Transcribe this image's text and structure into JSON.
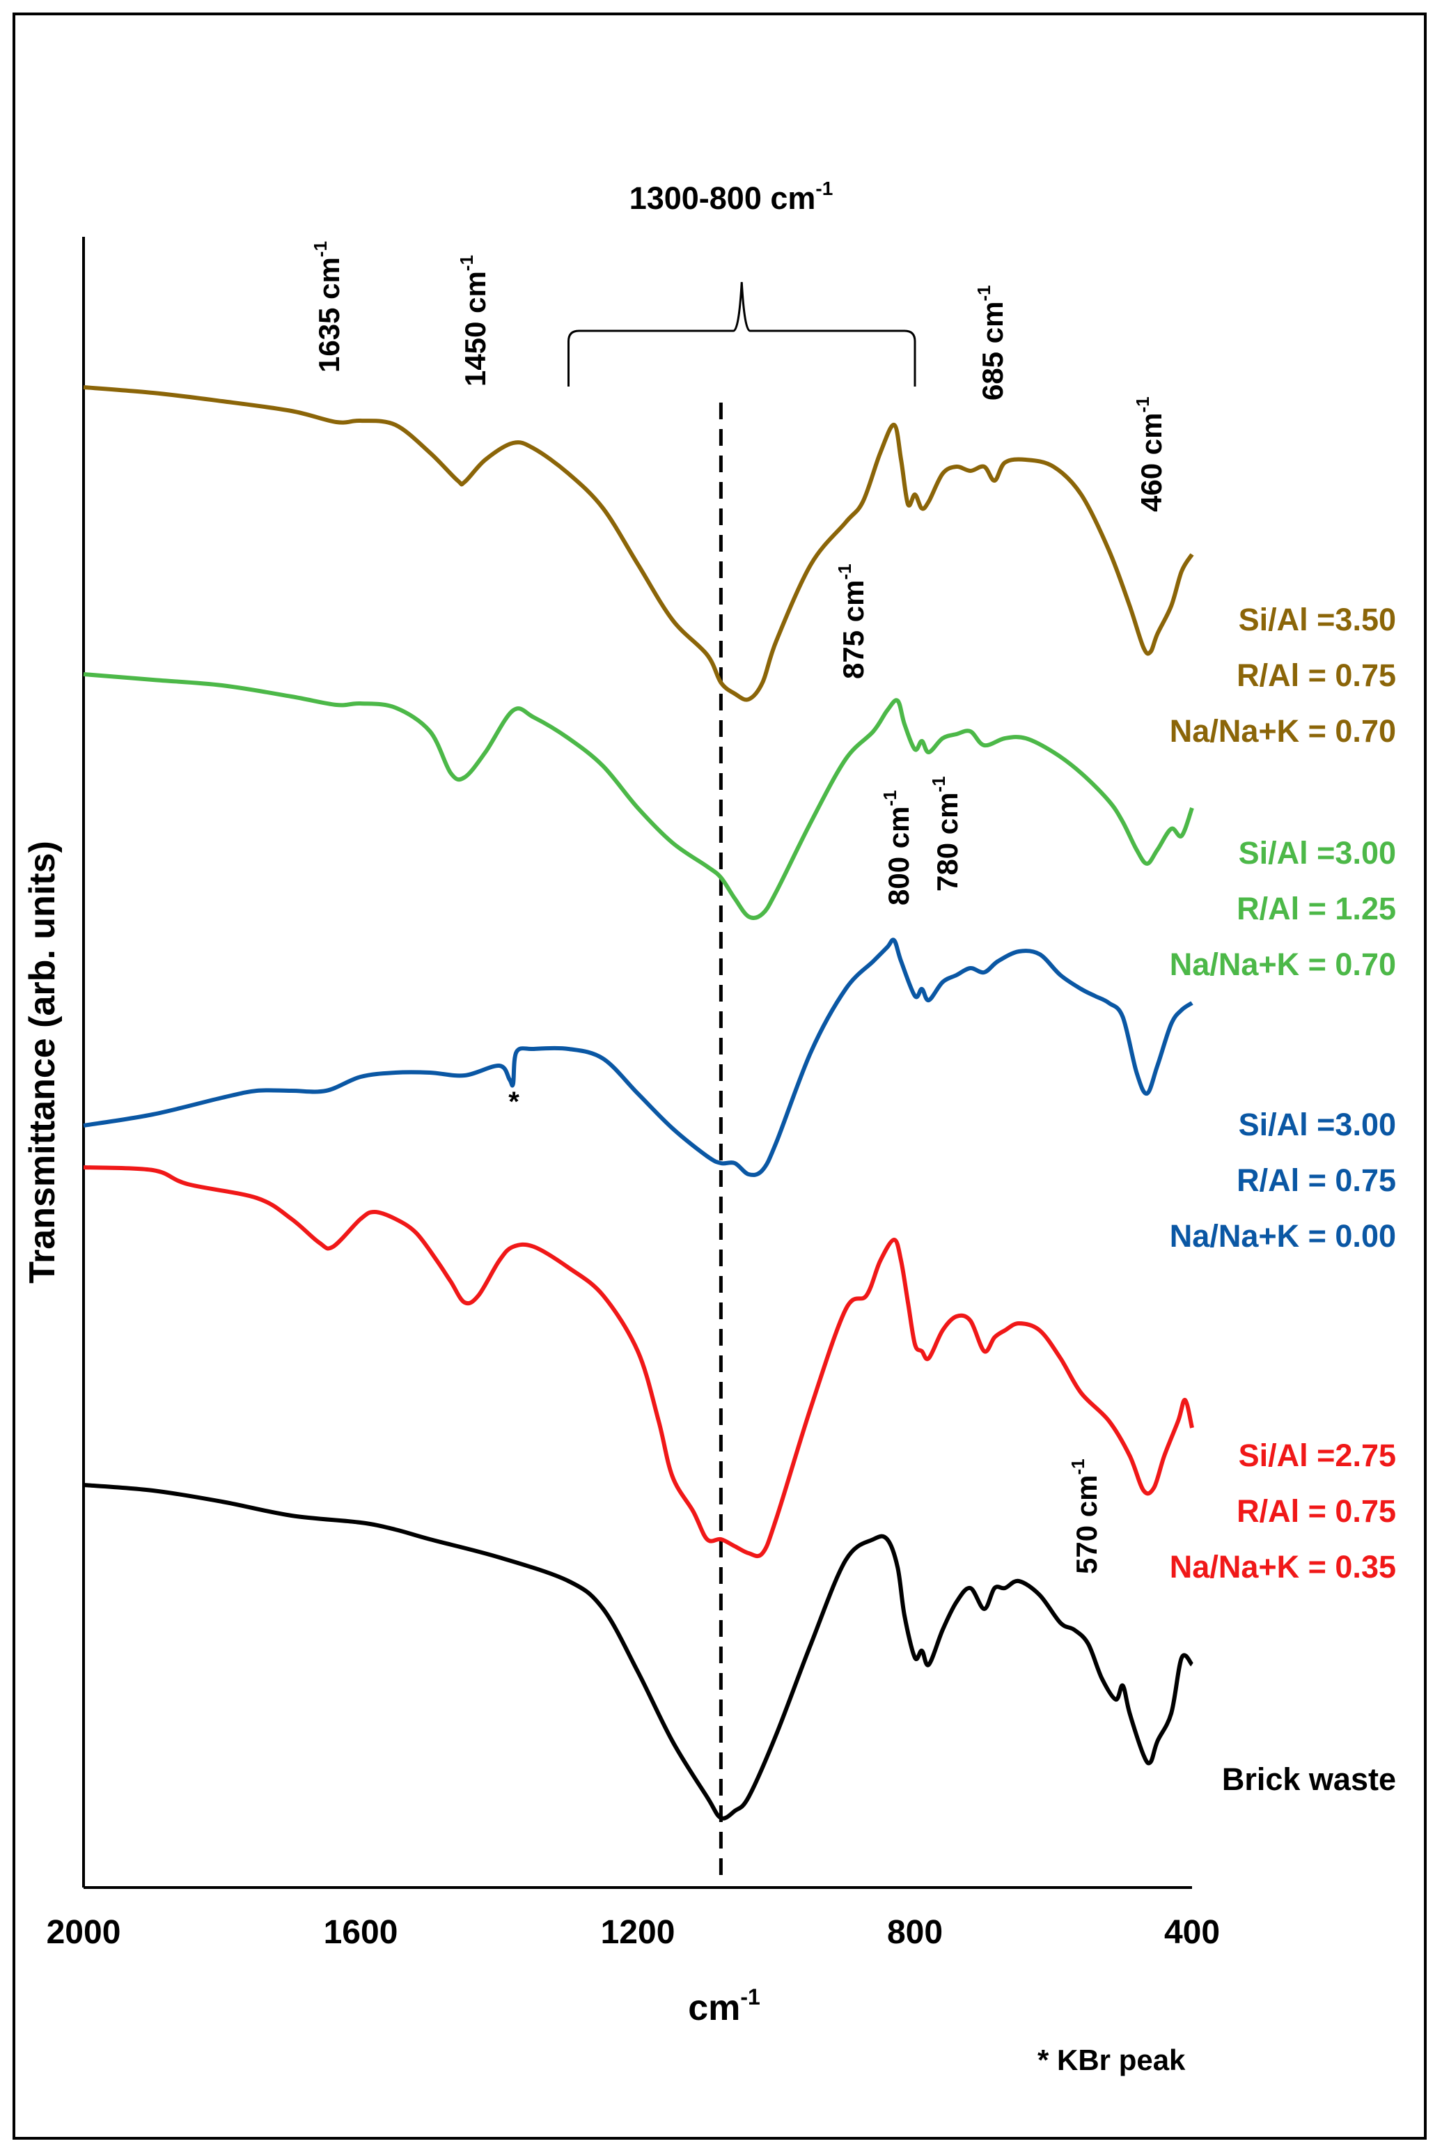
{
  "chart_data": {
    "type": "line",
    "title": "",
    "xlabel": "cm-1",
    "ylabel": "Transmittance (arb. units)",
    "xlim": [
      2000,
      400
    ],
    "x_reversed": true,
    "x_ticks": [
      2000,
      1600,
      1200,
      800,
      400
    ],
    "y_ticks": [],
    "grid": false,
    "footnote": "* KBr peak",
    "reference_line_x": 1080,
    "annotations": [
      {
        "label": "1635 cm-1",
        "base": "1635 cm",
        "sup": "-1",
        "x": 1635
      },
      {
        "label": "1450 cm-1",
        "base": "1450 cm",
        "sup": "-1",
        "x": 1450
      },
      {
        "label": "1300-800 cm-1",
        "base": "1300-800 cm",
        "sup": "-1",
        "x_range": [
          1300,
          800
        ]
      },
      {
        "label": "685 cm-1",
        "base": "685 cm",
        "sup": "-1",
        "x": 685
      },
      {
        "label": "460 cm-1",
        "base": "460 cm",
        "sup": "-1",
        "x": 460
      },
      {
        "label": "875 cm-1",
        "base": "875 cm",
        "sup": "-1",
        "x": 875
      },
      {
        "label": "800 cm-1",
        "base": "800 cm",
        "sup": "-1",
        "x": 800
      },
      {
        "label": "780 cm-1",
        "base": "780 cm",
        "sup": "-1",
        "x": 780
      },
      {
        "label": "570 cm-1",
        "base": "570 cm",
        "sup": "-1",
        "x": 570
      },
      {
        "label": "*",
        "base": "*",
        "sup": "",
        "x": 1380
      }
    ],
    "series": [
      {
        "name": "Si/Al =3.50 R/Al = 0.75 Na/Na+K = 0.70",
        "legend": [
          "Si/Al =3.50",
          "R/Al = 0.75",
          "Na/Na+K = 0.70"
        ],
        "color": "#8b6508",
        "points": [
          [
            2000,
            2.68
          ],
          [
            1900,
            2.72
          ],
          [
            1800,
            2.78
          ],
          [
            1700,
            2.85
          ],
          [
            1635,
            2.93
          ],
          [
            1600,
            2.92
          ],
          [
            1550,
            2.95
          ],
          [
            1500,
            3.15
          ],
          [
            1460,
            3.35
          ],
          [
            1450,
            3.36
          ],
          [
            1420,
            3.2
          ],
          [
            1380,
            3.08
          ],
          [
            1350,
            3.12
          ],
          [
            1300,
            3.3
          ],
          [
            1250,
            3.55
          ],
          [
            1200,
            3.95
          ],
          [
            1150,
            4.35
          ],
          [
            1100,
            4.6
          ],
          [
            1080,
            4.8
          ],
          [
            1060,
            4.88
          ],
          [
            1040,
            4.92
          ],
          [
            1020,
            4.8
          ],
          [
            1000,
            4.5
          ],
          [
            950,
            3.95
          ],
          [
            900,
            3.65
          ],
          [
            875,
            3.5
          ],
          [
            850,
            3.15
          ],
          [
            830,
            2.95
          ],
          [
            820,
            3.2
          ],
          [
            810,
            3.52
          ],
          [
            800,
            3.45
          ],
          [
            790,
            3.55
          ],
          [
            780,
            3.5
          ],
          [
            760,
            3.3
          ],
          [
            740,
            3.25
          ],
          [
            720,
            3.28
          ],
          [
            700,
            3.25
          ],
          [
            685,
            3.35
          ],
          [
            670,
            3.22
          ],
          [
            640,
            3.2
          ],
          [
            600,
            3.25
          ],
          [
            560,
            3.45
          ],
          [
            520,
            3.85
          ],
          [
            490,
            4.25
          ],
          [
            470,
            4.55
          ],
          [
            460,
            4.58
          ],
          [
            450,
            4.45
          ],
          [
            430,
            4.25
          ],
          [
            415,
            4.0
          ],
          [
            400,
            3.88
          ]
        ]
      },
      {
        "name": "Si/Al =3.00 R/Al = 1.25 Na/Na+K = 0.70",
        "legend": [
          "Si/Al =3.00",
          "R/Al = 1.25",
          "Na/Na+K = 0.70"
        ],
        "color": "#4cb848",
        "points": [
          [
            2000,
            4.74
          ],
          [
            1900,
            4.78
          ],
          [
            1800,
            4.82
          ],
          [
            1700,
            4.9
          ],
          [
            1635,
            4.96
          ],
          [
            1600,
            4.95
          ],
          [
            1550,
            4.98
          ],
          [
            1500,
            5.15
          ],
          [
            1470,
            5.45
          ],
          [
            1450,
            5.48
          ],
          [
            1420,
            5.3
          ],
          [
            1380,
            5.0
          ],
          [
            1350,
            5.05
          ],
          [
            1300,
            5.2
          ],
          [
            1250,
            5.4
          ],
          [
            1200,
            5.7
          ],
          [
            1150,
            5.95
          ],
          [
            1100,
            6.12
          ],
          [
            1080,
            6.2
          ],
          [
            1060,
            6.35
          ],
          [
            1040,
            6.48
          ],
          [
            1020,
            6.46
          ],
          [
            1000,
            6.3
          ],
          [
            950,
            5.8
          ],
          [
            900,
            5.35
          ],
          [
            860,
            5.15
          ],
          [
            840,
            5.0
          ],
          [
            825,
            4.93
          ],
          [
            815,
            5.1
          ],
          [
            800,
            5.28
          ],
          [
            790,
            5.22
          ],
          [
            780,
            5.3
          ],
          [
            760,
            5.2
          ],
          [
            740,
            5.17
          ],
          [
            720,
            5.15
          ],
          [
            700,
            5.25
          ],
          [
            670,
            5.2
          ],
          [
            640,
            5.2
          ],
          [
            600,
            5.3
          ],
          [
            560,
            5.45
          ],
          [
            520,
            5.65
          ],
          [
            500,
            5.8
          ],
          [
            480,
            6.0
          ],
          [
            465,
            6.1
          ],
          [
            450,
            6.0
          ],
          [
            430,
            5.85
          ],
          [
            415,
            5.9
          ],
          [
            400,
            5.7
          ]
        ]
      },
      {
        "name": "Si/Al =3.00 R/Al = 0.75 Na/Na+K = 0.00",
        "legend": [
          "Si/Al =3.00",
          "R/Al = 0.75",
          "Na/Na+K = 0.00"
        ],
        "color": "#0a57a4",
        "points": [
          [
            2000,
            7.98
          ],
          [
            1900,
            7.9
          ],
          [
            1800,
            7.78
          ],
          [
            1750,
            7.73
          ],
          [
            1700,
            7.73
          ],
          [
            1650,
            7.73
          ],
          [
            1600,
            7.63
          ],
          [
            1550,
            7.6
          ],
          [
            1500,
            7.6
          ],
          [
            1450,
            7.62
          ],
          [
            1400,
            7.55
          ],
          [
            1385,
            7.65
          ],
          [
            1380,
            7.68
          ],
          [
            1375,
            7.45
          ],
          [
            1350,
            7.43
          ],
          [
            1300,
            7.43
          ],
          [
            1250,
            7.5
          ],
          [
            1200,
            7.75
          ],
          [
            1150,
            8.0
          ],
          [
            1100,
            8.2
          ],
          [
            1080,
            8.25
          ],
          [
            1060,
            8.25
          ],
          [
            1040,
            8.33
          ],
          [
            1020,
            8.3
          ],
          [
            1000,
            8.1
          ],
          [
            950,
            7.45
          ],
          [
            900,
            7.0
          ],
          [
            860,
            6.8
          ],
          [
            840,
            6.7
          ],
          [
            830,
            6.65
          ],
          [
            820,
            6.8
          ],
          [
            800,
            7.05
          ],
          [
            790,
            7.0
          ],
          [
            780,
            7.08
          ],
          [
            760,
            6.95
          ],
          [
            740,
            6.9
          ],
          [
            720,
            6.85
          ],
          [
            700,
            6.88
          ],
          [
            680,
            6.8
          ],
          [
            650,
            6.73
          ],
          [
            620,
            6.75
          ],
          [
            590,
            6.9
          ],
          [
            560,
            7.0
          ],
          [
            540,
            7.05
          ],
          [
            520,
            7.1
          ],
          [
            500,
            7.2
          ],
          [
            480,
            7.6
          ],
          [
            465,
            7.75
          ],
          [
            450,
            7.55
          ],
          [
            430,
            7.25
          ],
          [
            415,
            7.15
          ],
          [
            400,
            7.1
          ]
        ]
      },
      {
        "name": "Si/Al =2.75 R/Al = 0.75 Na/Na+K = 0.35",
        "legend": [
          "Si/Al =2.75",
          "R/Al = 0.75",
          "Na/Na+K = 0.35"
        ],
        "color": "#f01818",
        "points": [
          [
            2000,
            8.28
          ],
          [
            1900,
            8.3
          ],
          [
            1850,
            8.4
          ],
          [
            1750,
            8.5
          ],
          [
            1700,
            8.65
          ],
          [
            1660,
            8.82
          ],
          [
            1640,
            8.85
          ],
          [
            1600,
            8.65
          ],
          [
            1580,
            8.6
          ],
          [
            1550,
            8.65
          ],
          [
            1520,
            8.75
          ],
          [
            1490,
            8.95
          ],
          [
            1470,
            9.1
          ],
          [
            1450,
            9.25
          ],
          [
            1430,
            9.2
          ],
          [
            1400,
            8.95
          ],
          [
            1380,
            8.85
          ],
          [
            1350,
            8.85
          ],
          [
            1300,
            9.0
          ],
          [
            1250,
            9.2
          ],
          [
            1200,
            9.6
          ],
          [
            1170,
            10.1
          ],
          [
            1150,
            10.5
          ],
          [
            1120,
            10.75
          ],
          [
            1100,
            10.95
          ],
          [
            1080,
            10.95
          ],
          [
            1060,
            11.0
          ],
          [
            1040,
            11.05
          ],
          [
            1020,
            11.05
          ],
          [
            1000,
            10.8
          ],
          [
            950,
            10.0
          ],
          [
            900,
            9.3
          ],
          [
            870,
            9.2
          ],
          [
            850,
            8.95
          ],
          [
            830,
            8.8
          ],
          [
            820,
            8.95
          ],
          [
            810,
            9.25
          ],
          [
            800,
            9.55
          ],
          [
            790,
            9.6
          ],
          [
            780,
            9.65
          ],
          [
            760,
            9.45
          ],
          [
            740,
            9.35
          ],
          [
            720,
            9.38
          ],
          [
            700,
            9.6
          ],
          [
            685,
            9.5
          ],
          [
            670,
            9.45
          ],
          [
            650,
            9.4
          ],
          [
            620,
            9.45
          ],
          [
            590,
            9.65
          ],
          [
            560,
            9.9
          ],
          [
            520,
            10.1
          ],
          [
            490,
            10.35
          ],
          [
            470,
            10.6
          ],
          [
            455,
            10.58
          ],
          [
            440,
            10.35
          ],
          [
            420,
            10.1
          ],
          [
            410,
            9.95
          ],
          [
            400,
            10.15
          ]
        ]
      },
      {
        "name": "Brick waste",
        "legend": [
          "Brick waste"
        ],
        "color": "#000000",
        "points": [
          [
            2000,
            10.56
          ],
          [
            1900,
            10.6
          ],
          [
            1800,
            10.68
          ],
          [
            1700,
            10.78
          ],
          [
            1600,
            10.83
          ],
          [
            1550,
            10.88
          ],
          [
            1500,
            10.95
          ],
          [
            1400,
            11.08
          ],
          [
            1300,
            11.25
          ],
          [
            1250,
            11.45
          ],
          [
            1200,
            11.9
          ],
          [
            1150,
            12.4
          ],
          [
            1100,
            12.8
          ],
          [
            1080,
            12.95
          ],
          [
            1060,
            12.9
          ],
          [
            1040,
            12.8
          ],
          [
            1000,
            12.35
          ],
          [
            950,
            11.7
          ],
          [
            900,
            11.1
          ],
          [
            860,
            10.95
          ],
          [
            840,
            10.95
          ],
          [
            825,
            11.15
          ],
          [
            815,
            11.5
          ],
          [
            800,
            11.8
          ],
          [
            790,
            11.75
          ],
          [
            780,
            11.85
          ],
          [
            760,
            11.6
          ],
          [
            740,
            11.4
          ],
          [
            720,
            11.3
          ],
          [
            700,
            11.45
          ],
          [
            685,
            11.3
          ],
          [
            670,
            11.3
          ],
          [
            650,
            11.25
          ],
          [
            620,
            11.35
          ],
          [
            590,
            11.55
          ],
          [
            570,
            11.6
          ],
          [
            550,
            11.7
          ],
          [
            530,
            11.95
          ],
          [
            510,
            12.1
          ],
          [
            500,
            12.0
          ],
          [
            490,
            12.2
          ],
          [
            470,
            12.5
          ],
          [
            460,
            12.55
          ],
          [
            450,
            12.4
          ],
          [
            430,
            12.2
          ],
          [
            415,
            11.8
          ],
          [
            400,
            11.85
          ]
        ]
      }
    ]
  }
}
